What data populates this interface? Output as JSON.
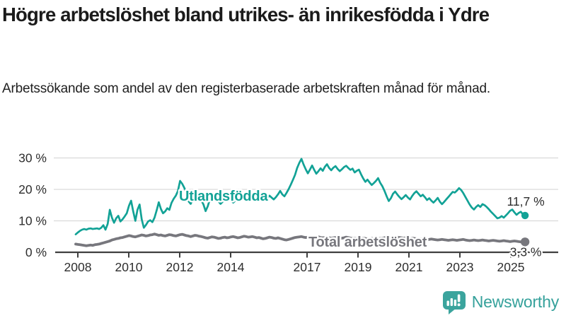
{
  "header": {
    "title": "Högre arbetslöshet bland utrikes- än inrikesfödda i Ydre",
    "subtitle": "Arbetssökande som andel av den registerbaserade arbetskraften månad för månad."
  },
  "footer": {
    "brand": "Newsworthy",
    "brand_color": "#35a19b",
    "brand_icon": "bar-chart-speech-bubble-icon"
  },
  "chart_data": {
    "type": "line",
    "title": "Högre arbetslöshet bland utrikes- än inrikesfödda i Ydre",
    "subtitle": "Arbetssökande som andel av den registerbaserade arbetskraften månad för månad.",
    "frequency": "monthly",
    "x_start": "2008-01",
    "x_end": "2025-08",
    "grid": true,
    "ylim": [
      0,
      32
    ],
    "axis_color": "#3f3f3f",
    "grid_color": "#d9d9d9",
    "tick_label_color": "#2e2e2e",
    "value_label_color": "#2d2d2d",
    "y_ticks": [
      {
        "value": 0,
        "label": "0 %"
      },
      {
        "value": 10,
        "label": "10 %"
      },
      {
        "value": 20,
        "label": "20 %"
      },
      {
        "value": 30,
        "label": "30 %"
      }
    ],
    "x_ticks": [
      {
        "year": 2008,
        "label": "2008"
      },
      {
        "year": 2010,
        "label": "2010"
      },
      {
        "year": 2012,
        "label": "2012"
      },
      {
        "year": 2014,
        "label": "2014"
      },
      {
        "year": 2017,
        "label": "2017"
      },
      {
        "year": 2019,
        "label": "2019"
      },
      {
        "year": 2021,
        "label": "2021"
      },
      {
        "year": 2023,
        "label": "2023"
      },
      {
        "year": 2025,
        "label": "2025"
      }
    ],
    "series": [
      {
        "name": "Utlandsfödda",
        "color": "#12a296",
        "end_label": "11,7 %",
        "values": [
          5.7,
          6.3,
          6.8,
          7.2,
          7.4,
          7.2,
          7.5,
          7.6,
          7.4,
          7.5,
          7.6,
          7.4,
          7.8,
          8.6,
          7.2,
          9.0,
          13.5,
          11.0,
          9.4,
          10.8,
          11.6,
          9.8,
          10.5,
          11.4,
          12.4,
          14.8,
          16.4,
          13.0,
          10.0,
          13.5,
          15.2,
          10.5,
          7.8,
          8.7,
          9.8,
          10.2,
          9.6,
          11.0,
          13.3,
          15.9,
          13.8,
          12.4,
          13.0,
          14.0,
          13.5,
          15.7,
          17.0,
          18.0,
          19.5,
          22.7,
          21.8,
          20.5,
          18.9,
          16.2,
          15.4,
          16.8,
          17.8,
          18.4,
          17.2,
          16.5,
          15.2,
          13.1,
          14.6,
          16.8,
          17.5,
          16.9,
          17.3,
          16.2,
          15.4,
          16.1,
          16.8,
          17.2,
          17.0,
          16.4,
          15.8,
          16.5,
          17.2,
          17.8,
          17.1,
          16.6,
          17.4,
          18.1,
          17.6,
          17.0,
          17.8,
          18.9,
          19.4,
          18.2,
          17.1,
          16.5,
          17.3,
          18.0,
          17.4,
          16.8,
          17.5,
          18.4,
          19.5,
          18.4,
          17.8,
          18.9,
          20.1,
          21.5,
          23.0,
          24.6,
          26.8,
          28.4,
          29.7,
          27.9,
          26.4,
          25.1,
          26.3,
          27.6,
          26.2,
          25.0,
          25.8,
          26.7,
          25.9,
          27.2,
          28.0,
          26.8,
          26.1,
          26.9,
          27.4,
          26.5,
          25.8,
          26.4,
          27.1,
          27.5,
          26.8,
          26.2,
          26.6,
          25.4,
          25.9,
          26.3,
          24.8,
          23.5,
          22.4,
          23.1,
          22.2,
          21.4,
          22.0,
          22.7,
          23.6,
          22.1,
          21.0,
          19.5,
          17.8,
          16.3,
          17.2,
          18.6,
          19.3,
          18.4,
          17.6,
          16.9,
          17.5,
          18.2,
          17.4,
          16.8,
          17.9,
          18.8,
          19.4,
          18.6,
          17.8,
          18.3,
          17.5,
          16.6,
          17.2,
          16.4,
          15.8,
          16.5,
          17.3,
          16.1,
          15.3,
          16.0,
          16.8,
          17.6,
          18.4,
          19.2,
          19.0,
          19.6,
          20.4,
          19.8,
          18.8,
          17.6,
          16.4,
          15.2,
          14.2,
          13.6,
          14.4,
          15.0,
          14.4,
          15.3,
          15.0,
          14.4,
          13.7,
          12.9,
          12.2,
          11.5,
          10.8,
          11.0,
          11.5,
          11.0,
          11.7,
          12.4,
          13.2,
          13.6,
          12.7,
          11.9,
          12.5,
          12.9,
          12.1,
          11.7
        ]
      },
      {
        "name": "Total arbetslöshet",
        "color": "#77777d",
        "end_label": "3,3 %",
        "values": [
          2.6,
          2.5,
          2.4,
          2.3,
          2.2,
          2.1,
          2.2,
          2.3,
          2.2,
          2.4,
          2.5,
          2.6,
          2.8,
          3.0,
          3.2,
          3.4,
          3.6,
          3.9,
          4.1,
          4.3,
          4.4,
          4.6,
          4.7,
          4.9,
          5.1,
          5.3,
          5.2,
          5.0,
          4.9,
          5.1,
          5.3,
          5.5,
          5.4,
          5.2,
          5.3,
          5.5,
          5.6,
          5.8,
          5.6,
          5.4,
          5.5,
          5.3,
          5.2,
          5.4,
          5.6,
          5.5,
          5.3,
          5.2,
          5.4,
          5.6,
          5.7,
          5.5,
          5.3,
          5.2,
          5.0,
          5.2,
          5.4,
          5.3,
          5.1,
          5.0,
          4.8,
          4.6,
          4.5,
          4.7,
          4.9,
          4.8,
          4.6,
          4.4,
          4.5,
          4.7,
          4.8,
          4.6,
          4.7,
          4.9,
          5.0,
          4.8,
          4.6,
          4.7,
          4.9,
          5.1,
          5.0,
          4.8,
          4.9,
          5.0,
          4.8,
          4.6,
          4.7,
          4.5,
          4.3,
          4.4,
          4.6,
          4.8,
          4.7,
          4.5,
          4.4,
          4.6,
          4.4,
          4.2,
          4.0,
          3.9,
          4.1,
          4.3,
          4.5,
          4.7,
          4.8,
          4.9,
          5.0,
          4.8,
          4.7,
          4.8,
          4.6,
          4.5,
          4.6,
          4.8,
          4.9,
          4.7,
          4.6,
          4.7,
          4.8,
          4.6,
          4.5,
          4.6,
          4.7,
          4.5,
          4.4,
          4.5,
          4.6,
          4.8,
          4.7,
          4.5,
          4.4,
          4.5,
          4.4,
          4.3,
          4.4,
          4.5,
          4.4,
          4.2,
          4.3,
          4.4,
          4.3,
          4.2,
          4.3,
          4.4,
          4.5,
          4.6,
          4.8,
          5.0,
          4.9,
          4.8,
          4.9,
          4.8,
          4.7,
          4.6,
          4.5,
          4.6,
          4.5,
          4.4,
          4.5,
          4.4,
          4.3,
          4.2,
          4.3,
          4.2,
          4.1,
          4.0,
          4.1,
          4.2,
          4.1,
          4.0,
          3.9,
          4.0,
          4.1,
          4.0,
          3.9,
          3.8,
          3.9,
          4.0,
          3.9,
          3.8,
          3.9,
          4.0,
          4.1,
          3.9,
          3.8,
          3.7,
          3.8,
          3.9,
          3.8,
          3.7,
          3.8,
          3.9,
          3.8,
          3.7,
          3.6,
          3.7,
          3.8,
          3.7,
          3.6,
          3.5,
          3.6,
          3.7,
          3.6,
          3.5,
          3.4,
          3.5,
          3.6,
          3.5,
          3.4,
          3.3,
          3.4,
          3.3
        ]
      }
    ]
  }
}
